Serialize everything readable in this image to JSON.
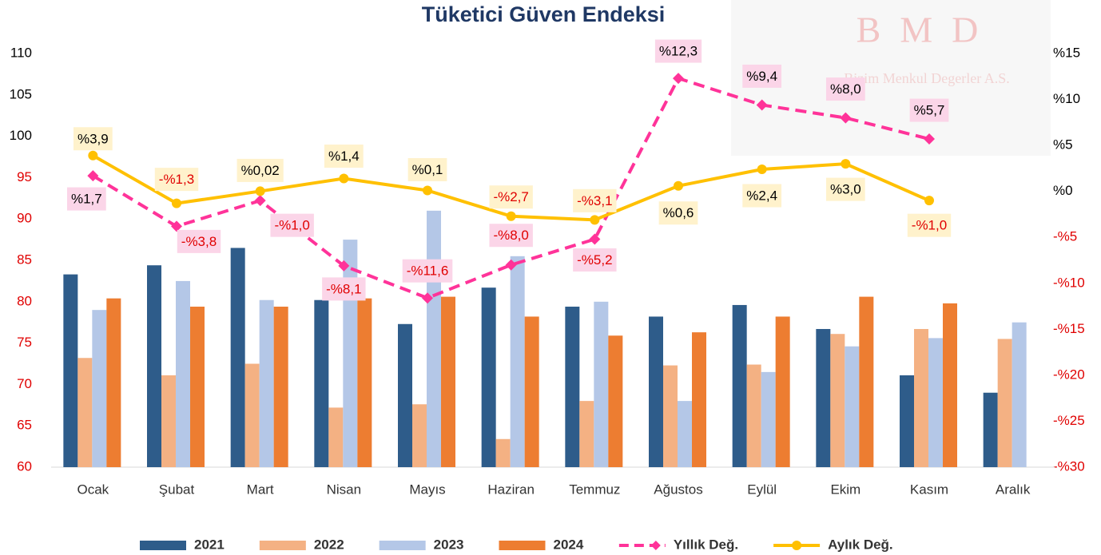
{
  "chart_data": {
    "type": "bar-line",
    "title": "Tüketici Güven Endeksi",
    "watermark": "BMD",
    "watermark_subtitle": "Bizim Menkul Degerler A.S.",
    "categories": [
      "Ocak",
      "Şubat",
      "Mart",
      "Nisan",
      "Mayıs",
      "Haziran",
      "Temmuz",
      "Ağustos",
      "Eylül",
      "Ekim",
      "Kasım",
      "Aralık"
    ],
    "series": [
      {
        "name": "2021",
        "type": "bar",
        "color": "#2e5c8a",
        "values": [
          83.3,
          84.4,
          86.5,
          80.2,
          77.3,
          81.7,
          79.4,
          78.2,
          79.6,
          76.7,
          71.1,
          69.0
        ]
      },
      {
        "name": "2022",
        "type": "bar",
        "color": "#f4b183",
        "values": [
          73.2,
          71.1,
          72.5,
          67.2,
          67.6,
          63.4,
          68.0,
          72.3,
          72.4,
          76.1,
          76.7,
          75.5
        ]
      },
      {
        "name": "2023",
        "type": "bar",
        "color": "#b4c7e7",
        "values": [
          79.0,
          82.5,
          80.2,
          87.5,
          91.0,
          85.5,
          80.0,
          68.0,
          71.5,
          74.6,
          75.6,
          77.5
        ]
      },
      {
        "name": "2024",
        "type": "bar",
        "color": "#ed7d31",
        "values": [
          80.4,
          79.4,
          79.4,
          80.4,
          80.6,
          78.2,
          75.9,
          76.3,
          78.2,
          80.6,
          79.8,
          null
        ]
      },
      {
        "name": "Yıllık Değ.",
        "type": "line",
        "axis": "y2",
        "color": "#ff3399",
        "dashed": true,
        "marker": "diamond",
        "label_bg": "#fbd5e8",
        "values": [
          1.7,
          -3.8,
          -1.0,
          -8.1,
          -11.6,
          -8.0,
          -5.2,
          12.3,
          9.4,
          8.0,
          5.7,
          null
        ],
        "value_labels": [
          "%1,7",
          "-%3,8",
          "-%1,0",
          "-%8,1",
          "-%11,6",
          "-%8,0",
          "-%5,2",
          "%12,3",
          "%9,4",
          "%8,0",
          "%5,7",
          null
        ]
      },
      {
        "name": "Aylık Değ.",
        "type": "line",
        "axis": "y2",
        "color": "#ffc000",
        "dashed": false,
        "marker": "circle",
        "label_bg": "#fff2cc",
        "values": [
          3.9,
          -1.3,
          0.02,
          1.4,
          0.1,
          -2.7,
          -3.1,
          0.6,
          2.4,
          3.0,
          -1.0,
          null
        ],
        "value_labels": [
          "%3,9",
          "-%1,3",
          "%0,02",
          "%1,4",
          "%0,1",
          "-%2,7",
          "-%3,1",
          "%0,6",
          "%2,4",
          "%3,0",
          "-%1,0",
          null
        ]
      }
    ],
    "ylim": [
      60,
      110
    ],
    "yticks": [
      60,
      65,
      70,
      75,
      80,
      85,
      90,
      95,
      100,
      105,
      110
    ],
    "ytick_colors": [
      "#e00000",
      "#e00000",
      "#e00000",
      "#e00000",
      "#e00000",
      "#e00000",
      "#e00000",
      "#e00000",
      "#000000",
      "#000000",
      "#000000"
    ],
    "y2lim": [
      -30,
      15
    ],
    "y2ticks": [
      {
        "value": -30,
        "label": "-%30"
      },
      {
        "value": -25,
        "label": "-%25"
      },
      {
        "value": -20,
        "label": "-%20"
      },
      {
        "value": -15,
        "label": "-%15"
      },
      {
        "value": -10,
        "label": "-%10"
      },
      {
        "value": -5,
        "label": "-%5"
      },
      {
        "value": 0,
        "label": "%0"
      },
      {
        "value": 5,
        "label": "%5"
      },
      {
        "value": 10,
        "label": "%10"
      },
      {
        "value": 15,
        "label": "%15"
      }
    ],
    "positive_color": "#000000",
    "negative_color": "#e00000",
    "legend": "bottom",
    "grid": false
  }
}
